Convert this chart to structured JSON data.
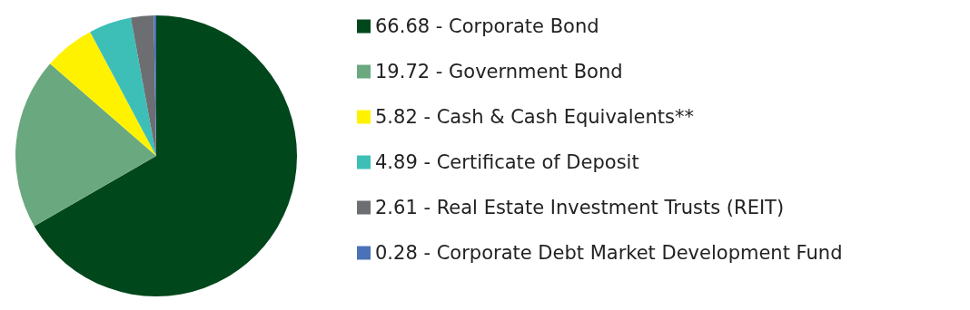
{
  "chart_data": {
    "type": "pie",
    "categories": [
      "66.68 - Corporate Bond",
      "19.72 - Government Bond",
      "5.82 - Cash & Cash Equivalents**",
      "4.89 - Certificate of Deposit",
      "2.61 - Real Estate Investment Trusts (REIT)",
      "0.28 - Corporate Debt Market Development Fund"
    ],
    "values": [
      66.68,
      19.72,
      5.82,
      4.89,
      2.61,
      0.28
    ],
    "colors": [
      "#00471b",
      "#6aa880",
      "#fff200",
      "#3dbfb8",
      "#6d6e71",
      "#4a72b8"
    ],
    "legend": "right"
  }
}
